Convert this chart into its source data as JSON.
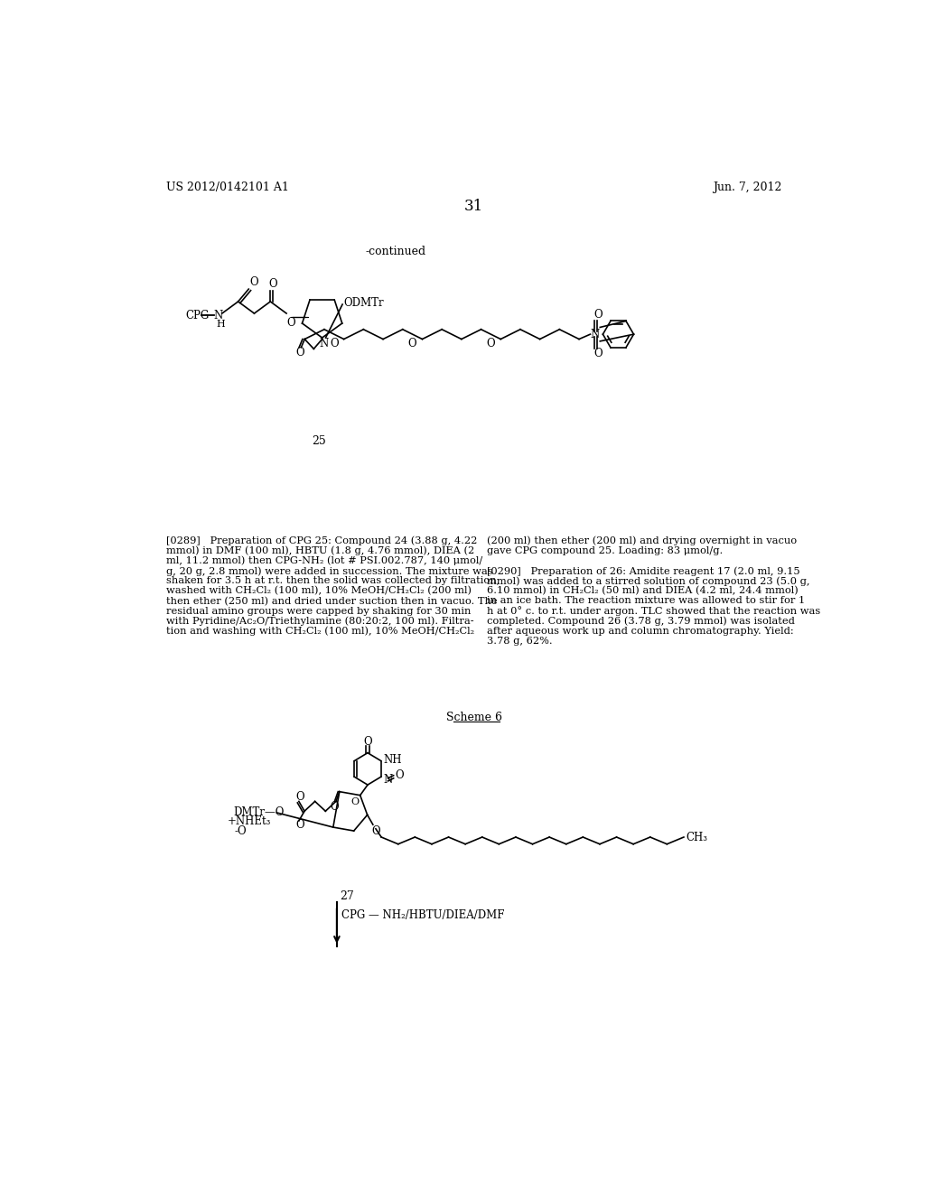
{
  "background_color": "#ffffff",
  "page_number": "31",
  "header_left": "US 2012/0142101 A1",
  "header_right": "Jun. 7, 2012",
  "continued_text": "-continued",
  "compound_number_1": "25",
  "scheme_label": "Scheme 6",
  "compound_number_2": "27",
  "arrow_label": "CPG — NH₂/HBTU/DIEA/DMF",
  "text_color": "#000000",
  "para_0289_left": [
    "[0289]   Preparation of CPG 25: Compound 24 (3.88 g, 4.22",
    "mmol) in DMF (100 ml), HBTU (1.8 g, 4.76 mmol), DIEA (2",
    "ml, 11.2 mmol) then CPG-NH₂ (lot # PSI.002.787, 140 μmol/",
    "g, 20 g, 2.8 mmol) were added in succession. The mixture was",
    "shaken for 3.5 h at r.t. then the solid was collected by filtration,",
    "washed with CH₂Cl₂ (100 ml), 10% MeOH/CH₂Cl₂ (200 ml)",
    "then ether (250 ml) and dried under suction then in vacuo. The",
    "residual amino groups were capped by shaking for 30 min",
    "with Pyridine/Ac₂O/Triethylamine (80:20:2, 100 ml). Filtra-",
    "tion and washing with CH₂Cl₂ (100 ml), 10% MeOH/CH₂Cl₂"
  ],
  "para_0289_right": [
    "(200 ml) then ether (200 ml) and drying overnight in vacuo",
    "gave CPG compound 25. Loading: 83 μmol/g."
  ],
  "para_0290_right": [
    "[0290]   Preparation of 26: Amidite reagent 17 (2.0 ml, 9.15",
    "mmol) was added to a stirred solution of compound 23 (5.0 g,",
    "6.10 mmol) in CH₂Cl₂ (50 ml) and DIEA (4.2 ml, 24.4 mmol)",
    "in an ice bath. The reaction mixture was allowed to stir for 1",
    "h at 0° c. to r.t. under argon. TLC showed that the reaction was",
    "completed. Compound 26 (3.78 g, 3.79 mmol) was isolated",
    "after aqueous work up and column chromatography. Yield:",
    "3.78 g, 62%."
  ]
}
